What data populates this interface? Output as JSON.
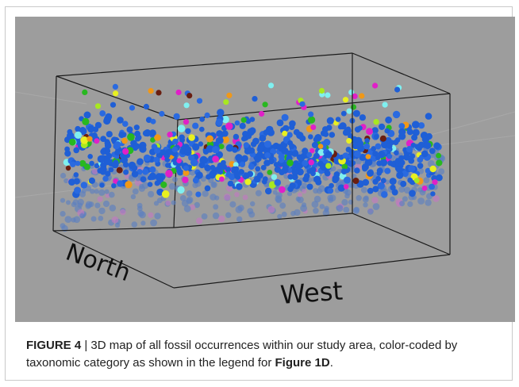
{
  "figure": {
    "axis_labels": {
      "north": "North",
      "west": "West"
    },
    "caption": {
      "label": "FIGURE 4",
      "separator": " | ",
      "text": "3D map of all fossil occurrences within our study area, color-coded by taxonomic category as shown in the legend for ",
      "ref": "Figure 1D",
      "end": "."
    },
    "colors": {
      "background": "#9d9d9d",
      "box_edge": "#1a1a1a",
      "points": [
        "#1f5fd6",
        "#2a6ae0",
        "#e020c8",
        "#28b820",
        "#e8f020",
        "#7ff0f0",
        "#f09818",
        "#6a1e10",
        "#a8e820"
      ]
    }
  }
}
